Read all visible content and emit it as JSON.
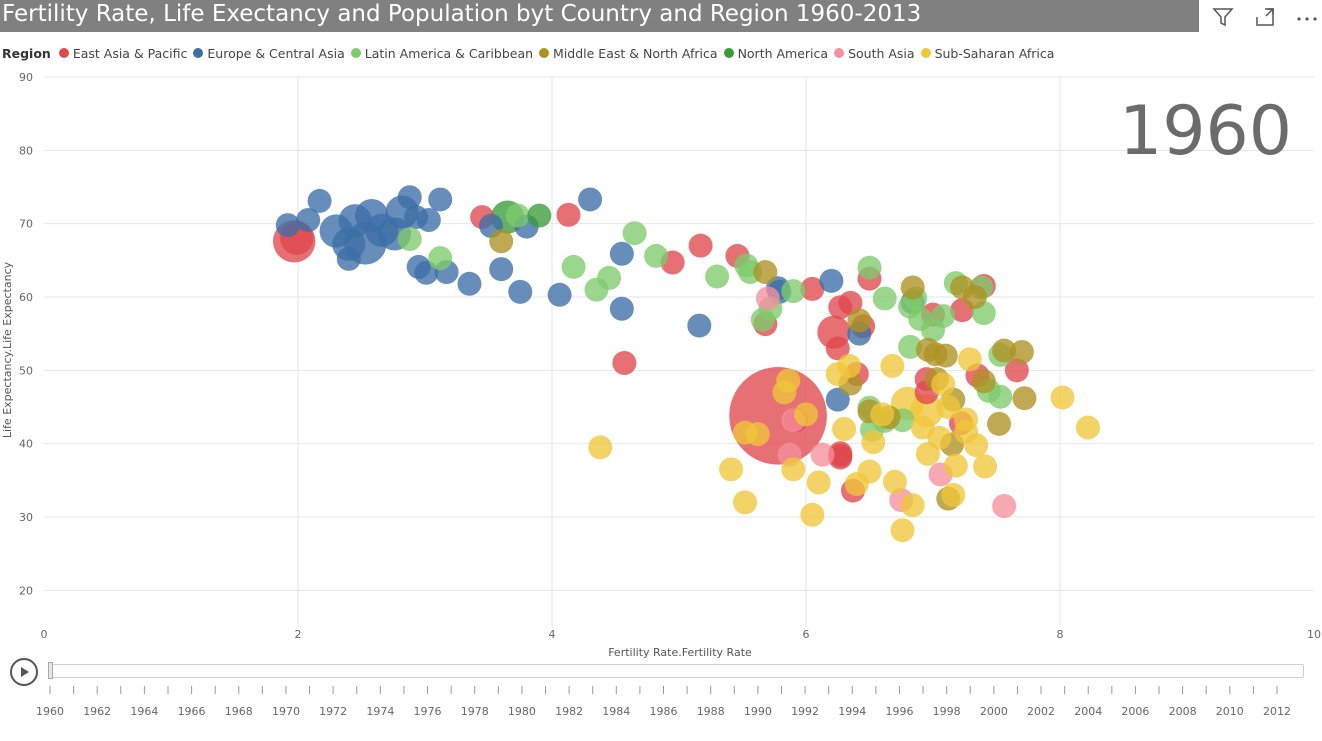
{
  "header": {
    "title": "Fertility Rate, Life Exectancy and Population byt Country and Region 1960-2013"
  },
  "toolbar": {
    "filter_icon": "filter-icon",
    "focus_icon": "focus-mode-icon",
    "more_icon": "more-options-icon"
  },
  "legend": {
    "title": "Region",
    "items": [
      {
        "label": "East Asia & Pacific",
        "color": "#E0484E"
      },
      {
        "label": "Europe & Central Asia",
        "color": "#3C6EA6"
      },
      {
        "label": "Latin America & Caribbean",
        "color": "#7DCB6B"
      },
      {
        "label": "Middle East & North Africa",
        "color": "#AD9222"
      },
      {
        "label": "North America",
        "color": "#3A9B3A"
      },
      {
        "label": "South Asia",
        "color": "#F5909C"
      },
      {
        "label": "Sub-Saharan Africa",
        "color": "#F0C63A"
      }
    ]
  },
  "chart_data": {
    "type": "scatter",
    "title": "Fertility Rate, Life Exectancy and Population byt Country and Region 1960-2013",
    "xlabel": "Fertility Rate.Fertility Rate",
    "ylabel": "Life Expectancy.Life Expectancy",
    "xlim": [
      0,
      10
    ],
    "ylim": [
      15,
      90
    ],
    "xticks": [
      0,
      2,
      4,
      6,
      8,
      10
    ],
    "yticks": [
      20,
      30,
      40,
      50,
      60,
      70,
      80,
      90
    ],
    "year_label": "1960",
    "grid": true,
    "series": [
      {
        "name": "East Asia & Pacific",
        "points": [
          [
            1.97,
            67.6,
            3
          ],
          [
            1.99,
            68,
            2
          ],
          [
            3.45,
            70.9,
            1
          ],
          [
            4.13,
            71.2,
            1
          ],
          [
            5.17,
            67,
            1
          ],
          [
            4.95,
            64.7,
            1
          ],
          [
            5.46,
            65.6,
            1
          ],
          [
            5.68,
            56.3,
            1
          ],
          [
            4.57,
            51,
            1
          ],
          [
            6.05,
            61.1,
            1
          ],
          [
            6.5,
            62.5,
            1
          ],
          [
            6.35,
            59.2,
            1
          ],
          [
            6.22,
            55.2,
            2
          ],
          [
            6.25,
            53,
            1
          ],
          [
            6.45,
            56,
            1
          ],
          [
            6.4,
            49.5,
            1
          ],
          [
            6.27,
            58.6,
            1
          ],
          [
            7.0,
            57.6,
            1
          ],
          [
            7.23,
            58.2,
            1
          ],
          [
            7.4,
            61.5,
            1
          ],
          [
            7.66,
            50,
            1
          ],
          [
            7.35,
            49.3,
            1
          ],
          [
            6.95,
            48.8,
            1
          ],
          [
            6.95,
            47,
            1
          ],
          [
            7.22,
            42.8,
            1
          ],
          [
            6.27,
            38.4,
            1
          ],
          [
            6.37,
            33.6,
            1
          ],
          [
            6.27,
            38.1,
            1
          ],
          [
            5.92,
            43.2,
            1
          ],
          [
            6.27,
            38.7,
            1
          ],
          [
            5.78,
            43.8,
            9
          ]
        ]
      },
      {
        "name": "Europe & Central Asia",
        "points": [
          [
            1.92,
            69.8,
            1
          ],
          [
            2.08,
            70.5,
            1
          ],
          [
            2.17,
            73.1,
            1
          ],
          [
            2.3,
            69,
            2
          ],
          [
            2.4,
            67.2,
            2
          ],
          [
            2.45,
            70.4,
            2
          ],
          [
            2.53,
            67.3,
            3
          ],
          [
            2.58,
            71.1,
            2
          ],
          [
            2.66,
            69.1,
            2
          ],
          [
            2.76,
            68.6,
            2
          ],
          [
            2.88,
            73.6,
            1
          ],
          [
            2.93,
            70.9,
            1
          ],
          [
            3.03,
            70.5,
            1
          ],
          [
            3.12,
            73.3,
            1
          ],
          [
            2.82,
            71.6,
            2
          ],
          [
            2.4,
            65.2,
            1
          ],
          [
            2.95,
            64.1,
            1
          ],
          [
            3.01,
            63.3,
            1
          ],
          [
            3.17,
            63.4,
            1
          ],
          [
            3.35,
            61.8,
            1
          ],
          [
            3.6,
            63.8,
            1
          ],
          [
            3.75,
            60.7,
            1
          ],
          [
            4.06,
            60.3,
            1
          ],
          [
            4.3,
            73.3,
            1
          ],
          [
            4.55,
            65.9,
            1
          ],
          [
            4.55,
            58.4,
            1
          ],
          [
            5.16,
            56.1,
            1
          ],
          [
            3.52,
            69.7,
            1
          ],
          [
            3.8,
            69.6,
            1
          ],
          [
            5.79,
            60.7,
            1
          ],
          [
            5.78,
            61.2,
            1
          ],
          [
            6.2,
            62.2,
            1
          ],
          [
            6.42,
            55,
            1
          ],
          [
            6.25,
            46,
            1
          ],
          [
            6.84,
            59.3,
            1
          ]
        ]
      },
      {
        "name": "Latin America & Caribbean",
        "points": [
          [
            2.88,
            67.9,
            1
          ],
          [
            3.12,
            65.3,
            1
          ],
          [
            3.73,
            71.1,
            1
          ],
          [
            4.17,
            64.1,
            1
          ],
          [
            4.35,
            61,
            1
          ],
          [
            4.45,
            62.6,
            1
          ],
          [
            4.65,
            68.7,
            1
          ],
          [
            4.82,
            65.6,
            1
          ],
          [
            5.3,
            62.8,
            1
          ],
          [
            5.53,
            64.3,
            1
          ],
          [
            5.56,
            63.4,
            1
          ],
          [
            5.72,
            58.4,
            1
          ],
          [
            5.66,
            56.9,
            1
          ],
          [
            5.9,
            60.8,
            1
          ],
          [
            6.5,
            64,
            1
          ],
          [
            6.62,
            59.8,
            1
          ],
          [
            6.86,
            59.8,
            1
          ],
          [
            6.82,
            58.7,
            1
          ],
          [
            6.9,
            57,
            1
          ],
          [
            7.0,
            55.5,
            1
          ],
          [
            7.08,
            57.4,
            1
          ],
          [
            7.38,
            61.3,
            1
          ],
          [
            7.4,
            57.8,
            1
          ],
          [
            6.82,
            53.2,
            1
          ],
          [
            7.53,
            52.1,
            1
          ],
          [
            7.44,
            47.2,
            1
          ],
          [
            7.53,
            46.4,
            1
          ],
          [
            6.5,
            44.9,
            1
          ],
          [
            6.62,
            43.1,
            1
          ],
          [
            6.52,
            41.9,
            1
          ],
          [
            6.76,
            43.2,
            1
          ],
          [
            7.18,
            61.9,
            1
          ]
        ]
      },
      {
        "name": "Middle East & North Africa",
        "points": [
          [
            3.6,
            67.6,
            1
          ],
          [
            5.68,
            63.4,
            1
          ],
          [
            6.42,
            56.8,
            1
          ],
          [
            6.35,
            48.2,
            1
          ],
          [
            6.65,
            43.6,
            1
          ],
          [
            6.5,
            44.4,
            1
          ],
          [
            7.02,
            52.2,
            1
          ],
          [
            7.1,
            52,
            1
          ],
          [
            6.96,
            52.8,
            1
          ],
          [
            7.03,
            48.8,
            1
          ],
          [
            7.16,
            46,
            1
          ],
          [
            7.15,
            39.9,
            1
          ],
          [
            7.56,
            52.7,
            1
          ],
          [
            7.7,
            52.5,
            1
          ],
          [
            7.72,
            46.2,
            1
          ],
          [
            7.52,
            42.7,
            1
          ],
          [
            7.12,
            32.5,
            1
          ],
          [
            7.33,
            60,
            1
          ],
          [
            7.23,
            61.3,
            1
          ],
          [
            6.84,
            61.3,
            1
          ],
          [
            7.4,
            48.5,
            1
          ]
        ]
      },
      {
        "name": "North America",
        "points": [
          [
            3.65,
            70.9,
            2
          ],
          [
            3.9,
            71.1,
            1
          ]
        ]
      },
      {
        "name": "South Asia",
        "points": [
          [
            5.7,
            59.8,
            1
          ],
          [
            5.87,
            38.5,
            1
          ],
          [
            6.13,
            38.5,
            1
          ],
          [
            6.75,
            32.3,
            1
          ],
          [
            7.06,
            35.8,
            1
          ],
          [
            7.56,
            31.5,
            1
          ],
          [
            5.9,
            43.2,
            1
          ]
        ]
      },
      {
        "name": "Sub-Saharan Africa",
        "points": [
          [
            4.38,
            39.5,
            1
          ],
          [
            5.41,
            36.5,
            1
          ],
          [
            5.52,
            32,
            1
          ],
          [
            5.52,
            41.5,
            1
          ],
          [
            5.86,
            48.6,
            1
          ],
          [
            5.9,
            36.5,
            1
          ],
          [
            5.83,
            47,
            1
          ],
          [
            6.05,
            30.3,
            1
          ],
          [
            6.1,
            34.7,
            1
          ],
          [
            6.3,
            42,
            1
          ],
          [
            6.4,
            34.5,
            1
          ],
          [
            6.53,
            40.2,
            1
          ],
          [
            6.6,
            44,
            1
          ],
          [
            6.68,
            50.6,
            1
          ],
          [
            6.7,
            34.8,
            1
          ],
          [
            6.84,
            31.6,
            1
          ],
          [
            6.76,
            28.2,
            1
          ],
          [
            6.92,
            42.2,
            1
          ],
          [
            6.96,
            38.6,
            1
          ],
          [
            7.05,
            40.8,
            1
          ],
          [
            7.18,
            37,
            1
          ],
          [
            7.26,
            41.6,
            1
          ],
          [
            7.41,
            36.9,
            1
          ],
          [
            7.16,
            33,
            1
          ],
          [
            8.02,
            46.3,
            1
          ],
          [
            8.22,
            42.2,
            1
          ],
          [
            7.08,
            48.1,
            1
          ],
          [
            6.95,
            44.5,
            2
          ],
          [
            6.8,
            45.5,
            2
          ],
          [
            6.5,
            36.2,
            1
          ],
          [
            7.26,
            43.3,
            1
          ],
          [
            6.34,
            50.6,
            1
          ],
          [
            7.12,
            45,
            1
          ],
          [
            5.62,
            41.3,
            1
          ],
          [
            7.29,
            51.5,
            1
          ],
          [
            6.25,
            49.5,
            1
          ],
          [
            7.34,
            39.8,
            1
          ],
          [
            6.0,
            44,
            1
          ]
        ]
      }
    ]
  },
  "timeline": {
    "play_icon": "play-icon",
    "current_year": "1960",
    "years": [
      "1960",
      "1962",
      "1964",
      "1966",
      "1968",
      "1970",
      "1972",
      "1974",
      "1976",
      "1978",
      "1980",
      "1982",
      "1984",
      "1986",
      "1988",
      "1990",
      "1992",
      "1994",
      "1996",
      "1998",
      "2000",
      "2002",
      "2004",
      "2006",
      "2008",
      "2010",
      "2012"
    ]
  }
}
